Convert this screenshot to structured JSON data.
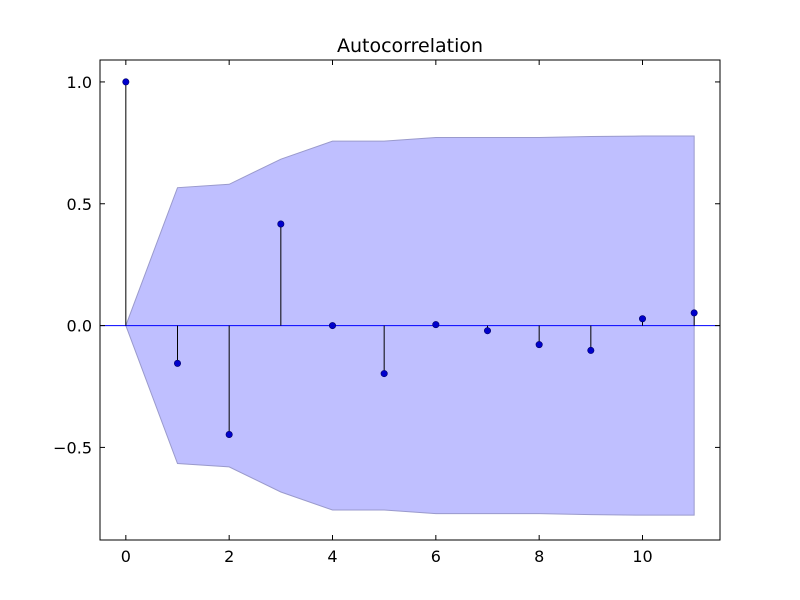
{
  "chart_data": {
    "type": "stem",
    "title": "Autocorrelation",
    "xlabel": "",
    "ylabel": "",
    "xlim": [
      -0.5,
      11.5
    ],
    "ylim": [
      -0.88,
      1.09
    ],
    "xticks": [
      0,
      2,
      4,
      6,
      8,
      10
    ],
    "yticks": [
      -0.5,
      0.0,
      0.5,
      1.0
    ],
    "xtick_labels": [
      "0",
      "2",
      "4",
      "6",
      "8",
      "10"
    ],
    "ytick_labels": [
      "−0.5",
      "0.0",
      "0.5",
      "1.0"
    ],
    "grid": false,
    "lags": [
      0,
      1,
      2,
      3,
      4,
      5,
      6,
      7,
      8,
      9,
      10,
      11
    ],
    "values": [
      1.0,
      -0.155,
      -0.447,
      0.417,
      0.0,
      -0.197,
      0.004,
      -0.021,
      -0.078,
      -0.102,
      0.028,
      0.052
    ],
    "confidence_band": {
      "lags": [
        0,
        1,
        2,
        3,
        4,
        5,
        6,
        7,
        8,
        9,
        10,
        11
      ],
      "upper": [
        0.0,
        0.566,
        0.58,
        0.683,
        0.757,
        0.757,
        0.772,
        0.772,
        0.772,
        0.776,
        0.778,
        0.778
      ]
    },
    "colors": {
      "marker": "#0000cc",
      "baseline": "#0000ff",
      "stem": "#000000",
      "band_fill": "#bfbfff",
      "band_edge": "#9a9acc"
    }
  }
}
